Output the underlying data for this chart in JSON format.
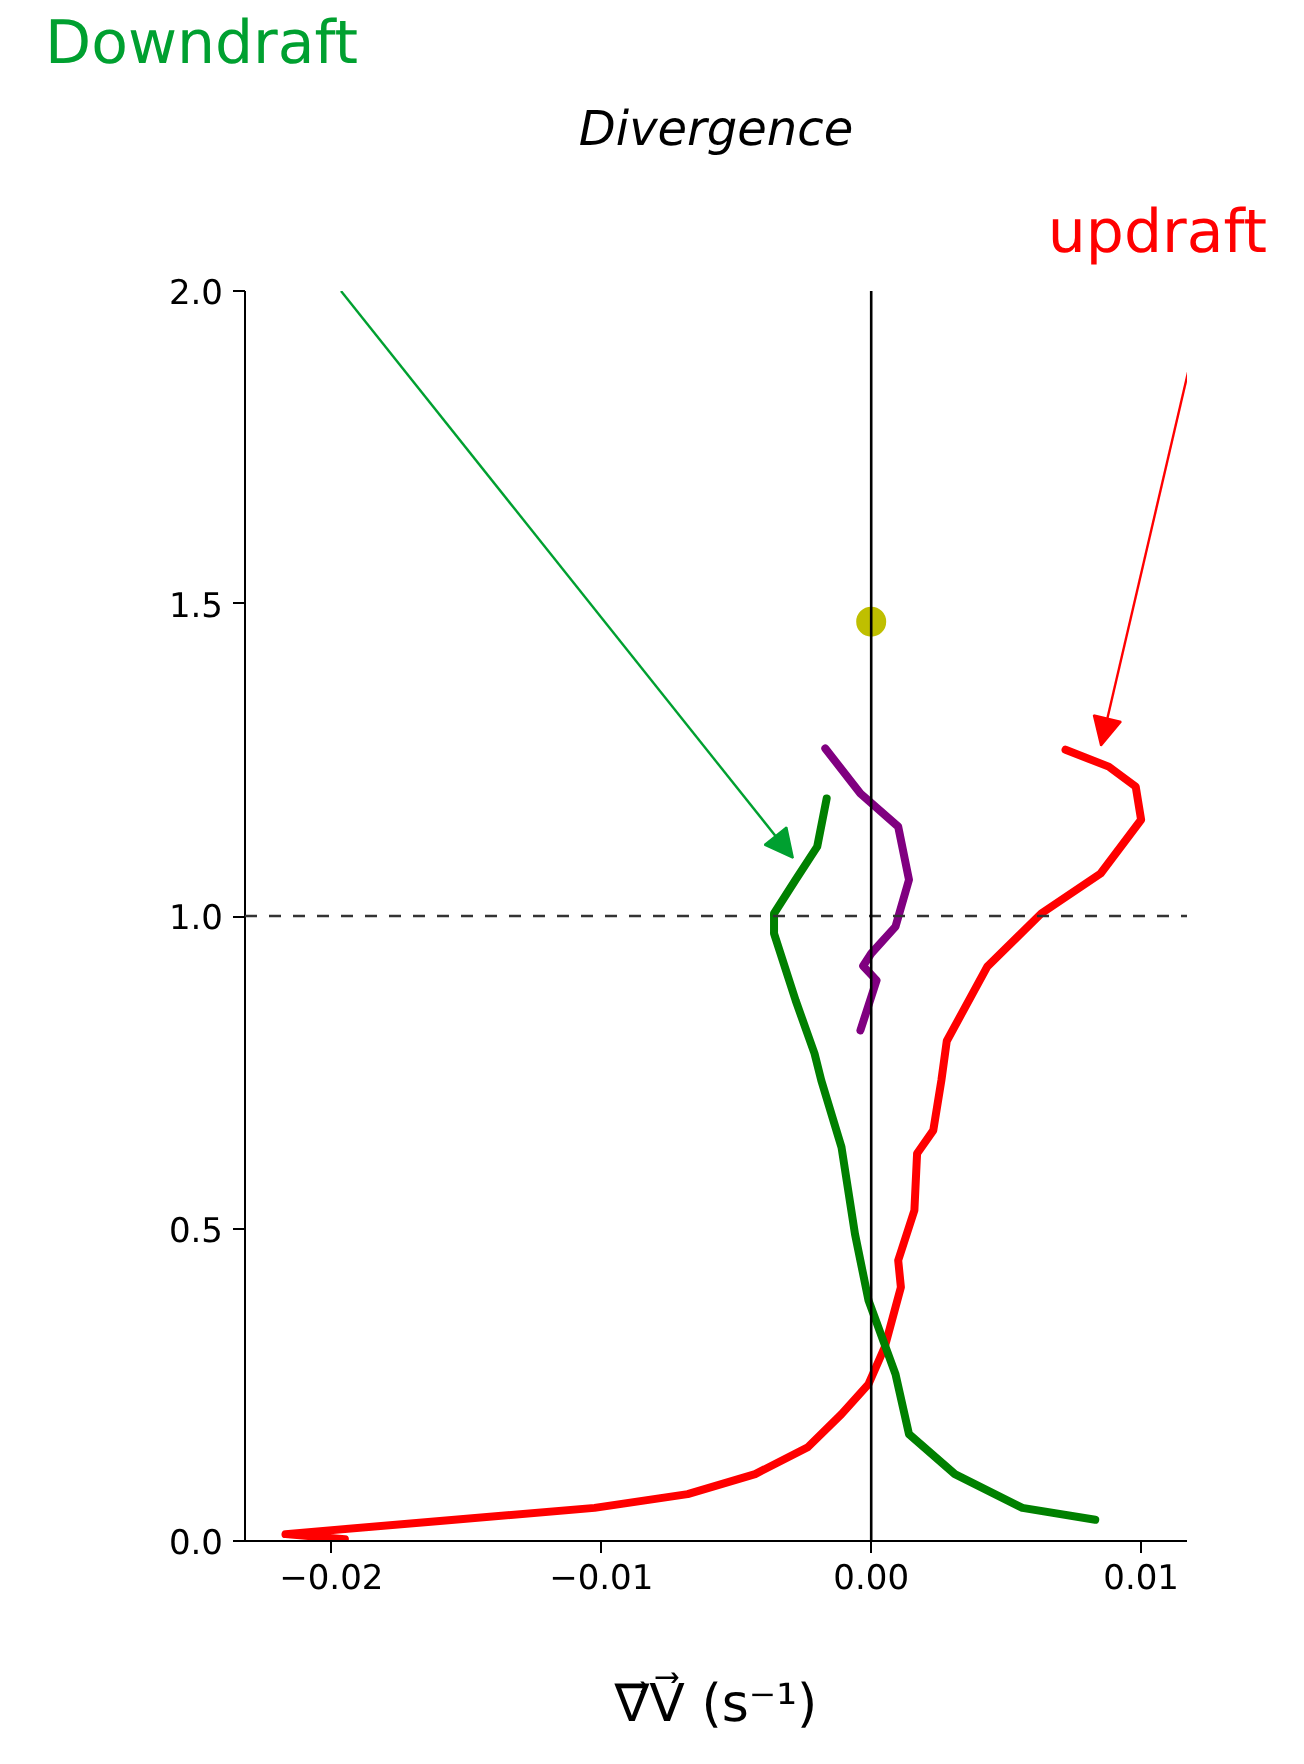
{
  "chart_data": {
    "type": "line",
    "title": "Divergence",
    "xlabel": "∇⃗V⃗ (s⁻¹)",
    "xlim": [
      -0.0232,
      0.0117
    ],
    "ylim": [
      0,
      2.0
    ],
    "xticks": [
      {
        "value": -0.02,
        "label": "−0.02"
      },
      {
        "value": -0.01,
        "label": "−0.01"
      },
      {
        "value": 0.0,
        "label": "0.00"
      },
      {
        "value": 0.01,
        "label": "0.01"
      }
    ],
    "yticks": [
      {
        "value": 0.0,
        "label": "0.0"
      },
      {
        "value": 0.5,
        "label": "0.5"
      },
      {
        "value": 1.0,
        "label": "1.0"
      },
      {
        "value": 1.5,
        "label": "1.5"
      },
      {
        "value": 2.0,
        "label": "2.0"
      }
    ],
    "grid": false,
    "line_style": "solid",
    "series": [
      {
        "color": "#ff0000",
        "x": [
          -0.0195,
          -0.0217,
          -0.01025,
          -0.0068,
          -0.0043,
          -0.00235,
          -0.0011,
          -0.0001,
          0.0005,
          0.0011,
          0.001,
          0.0016,
          0.0017,
          0.0023,
          0.0026,
          0.0028,
          0.0043,
          0.0063,
          0.0085,
          0.01,
          0.0098,
          0.0088,
          0.0072
        ],
        "values": [
          0.003,
          0.011,
          0.053,
          0.075,
          0.107,
          0.15,
          0.203,
          0.251,
          0.31,
          0.406,
          0.449,
          0.529,
          0.62,
          0.657,
          0.737,
          0.8,
          0.919,
          1.004,
          1.068,
          1.154,
          1.207,
          1.239,
          1.266
        ]
      },
      {
        "color": "#008000",
        "x": [
          -0.00165,
          -0.002,
          -0.0028,
          -0.0036,
          -0.0036,
          -0.0028,
          -0.0021,
          -0.00185,
          -0.0011,
          -0.0006,
          -0.0001,
          0.0009,
          0.0014,
          0.0031,
          0.0056,
          0.0083
        ],
        "values": [
          1.188,
          1.111,
          1.058,
          1.004,
          0.972,
          0.865,
          0.78,
          0.737,
          0.63,
          0.491,
          0.385,
          0.267,
          0.171,
          0.107,
          0.053,
          0.034
        ]
      },
      {
        "color": "#800080",
        "x": [
          -0.0017,
          -0.0004,
          0.001,
          0.0014,
          0.0009,
          0.0,
          -0.0003,
          0.0002,
          -0.0004
        ],
        "values": [
          1.268,
          1.196,
          1.143,
          1.058,
          0.983,
          0.94,
          0.92,
          0.897,
          0.817
        ]
      },
      {
        "type": "scatter",
        "marker": "circle",
        "color": "#bfbf00",
        "x": [
          0.0
        ],
        "values": [
          1.471
        ]
      }
    ],
    "ref_lines": [
      {
        "axis": "y",
        "value": 1.0,
        "line_style": "dashed",
        "color": "#333333"
      },
      {
        "axis": "x",
        "value": 0.0,
        "line_style": "solid",
        "color": "#000000"
      }
    ],
    "annotations": [
      "Downdraft",
      "updraft"
    ]
  }
}
